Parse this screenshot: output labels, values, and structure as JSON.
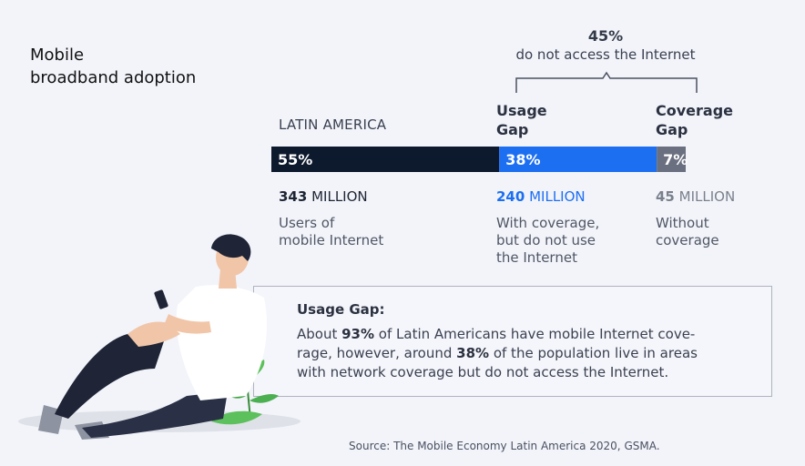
{
  "title_lines": [
    "Mobile",
    "broadband adoption"
  ],
  "gap_total": {
    "pct": "45%",
    "desc": "do not access the Internet"
  },
  "region_label": "LATIN AMERICA",
  "chart_data": {
    "type": "bar",
    "orientation": "horizontal",
    "stacked": true,
    "categories": [
      "LATIN AMERICA"
    ],
    "series": [
      {
        "name": "",
        "values": [
          55
        ],
        "label": "55%",
        "color": "#0d1a2e"
      },
      {
        "name": "Usage Gap",
        "values": [
          38
        ],
        "label": "38%",
        "color": "#1d6ff2"
      },
      {
        "name": "Coverage Gap",
        "values": [
          7
        ],
        "label": "7%",
        "color": "#6b7080"
      }
    ],
    "xlim": [
      0,
      100
    ],
    "title": "Mobile broadband adoption"
  },
  "columns": [
    {
      "num": "343",
      "unit": "MILLION",
      "desc_lines": [
        "Users of",
        "mobile Internet"
      ]
    },
    {
      "num": "240",
      "unit": "MILLION",
      "desc_lines": [
        "With coverage,",
        "but do not use",
        "the Internet"
      ]
    },
    {
      "num": "45",
      "unit": "MILLION",
      "desc_lines": [
        "Without",
        "coverage"
      ]
    }
  ],
  "usage_head": [
    "Usage",
    "Gap"
  ],
  "coverage_head": [
    "Coverage",
    "Gap"
  ],
  "note": {
    "title": "Usage Gap:",
    "lines": [
      [
        "About ",
        "93%",
        " of Latin Americans have mobile Internet cove-"
      ],
      [
        "rage, however, around ",
        "38%",
        " of the population live in areas"
      ],
      [
        "with network coverage but do not access the Internet.",
        "",
        ""
      ]
    ]
  },
  "source": "Source: The Mobile Economy Latin America 2020, GSMA.",
  "illustration_icon": "person-sitting-with-phone-icon"
}
